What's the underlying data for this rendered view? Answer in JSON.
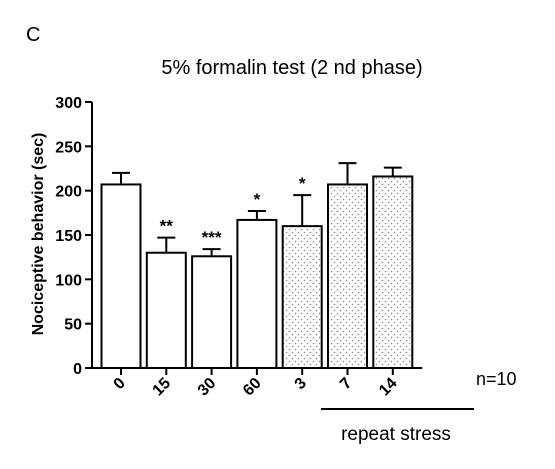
{
  "panel_letter": "C",
  "n_label": "n=10",
  "group_label": "repeat stress",
  "chart_data": {
    "type": "bar",
    "title": "5% formalin test (2 nd phase)",
    "xlabel": "",
    "ylabel": "Nociceptive behavior (sec)",
    "ylim": [
      0,
      300
    ],
    "yticks": [
      0,
      50,
      100,
      150,
      200,
      250,
      300
    ],
    "categories": [
      "0",
      "15",
      "30",
      "60",
      "3",
      "7",
      "14"
    ],
    "values": [
      207,
      130,
      126,
      167,
      160,
      207,
      216
    ],
    "errors": [
      13,
      17,
      8,
      10,
      35,
      24,
      10
    ],
    "significance": [
      "",
      "**",
      "***",
      "*",
      "*",
      "",
      ""
    ],
    "fill": [
      "open",
      "open",
      "open",
      "open",
      "dotted",
      "dotted",
      "dotted"
    ],
    "grid": false,
    "colors": {
      "bar_edge": "#000000",
      "open_fill": "#ffffff",
      "dot_fill": "#8c8c8c"
    }
  }
}
